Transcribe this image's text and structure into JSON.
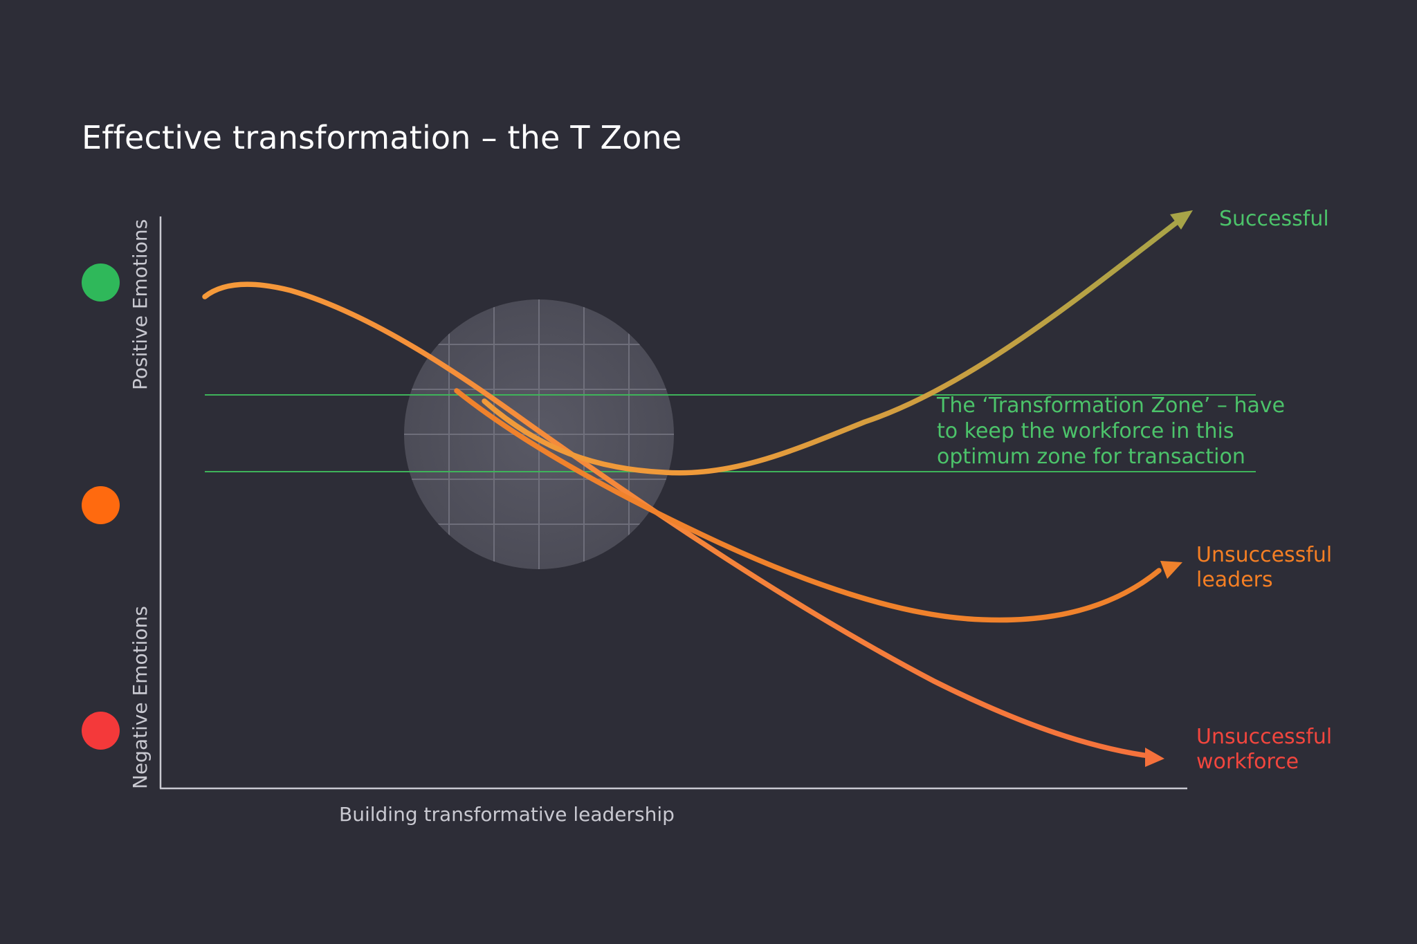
{
  "title": "Effective transformation – the T Zone",
  "axes": {
    "y_top_label": "Positive Emotions",
    "y_bottom_label": "Negative Emotions",
    "x_label": "Building transformative leadership"
  },
  "emotion_indicators": [
    {
      "name": "positive",
      "color": "#2fb85a"
    },
    {
      "name": "neutral",
      "color": "#ff6a0f"
    },
    {
      "name": "negative",
      "color": "#f4393a"
    }
  ],
  "zone_note": {
    "lines": [
      "The ‘Transformation Zone’ – have",
      "to keep the workforce in this",
      "optimum zone for transaction"
    ],
    "color": "#4cc36a"
  },
  "curves": [
    {
      "label_lines": [
        "Successful"
      ],
      "color": "#4cc36a",
      "arrow_color": "#a7a448"
    },
    {
      "label_lines": [
        "Unsuccessful",
        "leaders"
      ],
      "color": "#f57f24",
      "arrow_color": "#f0822c"
    },
    {
      "label_lines": [
        "Unsuccessful",
        "workforce"
      ],
      "color": "#f2463e",
      "arrow_color": "#f5713c"
    }
  ],
  "colors": {
    "background": "#2d2d37",
    "axis": "#c9c9d1",
    "zone_lines": "#3fb45a",
    "circle": "#53535e"
  }
}
